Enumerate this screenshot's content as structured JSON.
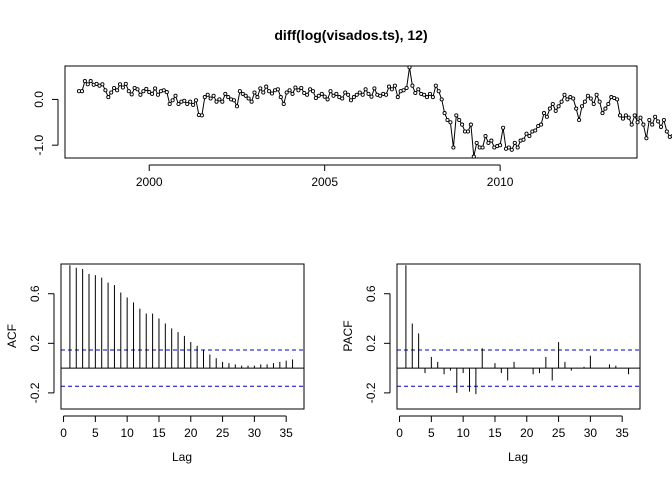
{
  "chart_data": [
    {
      "type": "line",
      "title": "diff(log(visados.ts), 12)",
      "xlabel": "",
      "ylabel": "",
      "x_ticks": [
        2000,
        2005,
        2010
      ],
      "y_ticks": [
        -1.0,
        0.0
      ],
      "y_tick_labels": [
        "-1.0",
        "0.0"
      ],
      "xlim": [
        1997.6,
        2013.9
      ],
      "ylim": [
        -1.28,
        0.73
      ],
      "series": [
        {
          "x_start": 1998.0,
          "frequency": 12,
          "values": [
            0.18,
            0.18,
            0.4,
            0.33,
            0.4,
            0.32,
            0.34,
            0.3,
            0.33,
            0.2,
            0.05,
            0.15,
            0.25,
            0.2,
            0.33,
            0.26,
            0.34,
            0.18,
            0.11,
            0.25,
            0.22,
            0.1,
            0.18,
            0.23,
            0.16,
            0.12,
            0.24,
            0.1,
            0.18,
            0.2,
            0.16,
            -0.1,
            -0.02,
            0.08,
            -0.1,
            -0.05,
            -0.03,
            -0.1,
            -0.05,
            -0.12,
            -0.02,
            -0.34,
            -0.35,
            0.05,
            0.1,
            0.02,
            0.08,
            -0.05,
            0.0,
            -0.05,
            0.12,
            0.05,
            0.0,
            -0.02,
            -0.15,
            0.18,
            0.12,
            0.08,
            0.02,
            -0.05,
            0.15,
            0.05,
            0.24,
            0.15,
            0.28,
            0.18,
            0.13,
            0.2,
            0.22,
            0.05,
            -0.1,
            0.15,
            0.2,
            0.12,
            0.26,
            0.2,
            0.25,
            0.14,
            0.1,
            0.22,
            0.18,
            0.03,
            0.08,
            0.12,
            0.06,
            0.0,
            0.18,
            0.08,
            0.12,
            0.05,
            0.02,
            0.15,
            0.1,
            -0.02,
            0.05,
            0.1,
            0.15,
            0.1,
            0.22,
            0.12,
            0.06,
            0.24,
            0.1,
            0.08,
            0.12,
            0.1,
            0.28,
            0.22,
            0.3,
            0.05,
            0.18,
            0.2,
            0.25,
            0.7,
            0.3,
            0.14,
            0.22,
            0.12,
            0.1,
            0.05,
            0.12,
            0.05,
            0.3,
            0.18,
            0.0,
            -0.3,
            -0.45,
            -0.5,
            -1.05,
            -0.35,
            -0.45,
            -0.55,
            -0.7,
            -0.7,
            -0.55,
            -1.25,
            -0.95,
            -1.05,
            -1.05,
            -0.8,
            -0.95,
            -0.9,
            -1.05,
            -1.02,
            -1.0,
            -0.62,
            -1.08,
            -1.05,
            -1.1,
            -0.95,
            -1.05,
            -0.9,
            -0.88,
            -0.75,
            -0.8,
            -0.7,
            -0.68,
            -0.58,
            -0.55,
            -0.3,
            -0.38,
            -0.2,
            -0.1,
            -0.25,
            -0.15,
            -0.05,
            0.1,
            0.0,
            0.05,
            0.02,
            -0.2,
            -0.45,
            -0.15,
            -0.05,
            0.08,
            0.02,
            -0.1,
            0.1,
            -0.05,
            -0.3,
            -0.2,
            -0.1,
            0.05,
            0.03,
            0.0,
            -0.35,
            -0.42,
            -0.35,
            -0.4,
            -0.55,
            -0.35,
            -0.5,
            -0.4,
            -0.55,
            -0.85,
            -0.45,
            -0.55,
            -0.38,
            -0.48,
            -0.6,
            -0.45,
            -0.7,
            -0.82,
            -0.8,
            -0.6,
            -0.45,
            -0.4,
            -0.7,
            -0.55,
            -0.45,
            -0.1,
            -0.52,
            -0.4,
            -0.45,
            -0.15,
            -0.08,
            -0.55
          ]
        }
      ],
      "marker": "open-circle",
      "line_color": "#000000",
      "grid": false
    },
    {
      "type": "bar",
      "subtype": "acf",
      "title": "",
      "xlabel": "Lag",
      "ylabel": "ACF",
      "x_ticks": [
        0,
        5,
        10,
        15,
        20,
        25,
        30,
        35
      ],
      "y_ticks": [
        -0.2,
        0.2,
        0.6
      ],
      "y_tick_labels": [
        "-0.2",
        "0.2",
        "0.6"
      ],
      "xlim": [
        -0.4,
        37.8
      ],
      "ylim": [
        -0.33,
        0.84
      ],
      "lags": [
        1,
        2,
        3,
        4,
        5,
        6,
        7,
        8,
        9,
        10,
        11,
        12,
        13,
        14,
        15,
        16,
        17,
        18,
        19,
        20,
        21,
        22,
        23,
        24,
        25,
        26,
        27,
        28,
        29,
        30,
        31,
        32,
        33,
        34,
        35,
        36
      ],
      "values": [
        0.83,
        0.81,
        0.8,
        0.76,
        0.75,
        0.73,
        0.69,
        0.67,
        0.61,
        0.57,
        0.53,
        0.48,
        0.44,
        0.44,
        0.4,
        0.36,
        0.32,
        0.29,
        0.26,
        0.21,
        0.18,
        0.15,
        0.11,
        0.08,
        0.05,
        0.04,
        0.03,
        0.02,
        0.02,
        0.02,
        0.03,
        0.03,
        0.04,
        0.05,
        0.06,
        0.07
      ],
      "conf_level": 0.146,
      "conf_color": "#0000cc",
      "grid": false
    },
    {
      "type": "bar",
      "subtype": "pacf",
      "title": "",
      "xlabel": "Lag",
      "ylabel": "PACF",
      "x_ticks": [
        0,
        5,
        10,
        15,
        20,
        25,
        30,
        35
      ],
      "y_ticks": [
        -0.2,
        0.2,
        0.6
      ],
      "y_tick_labels": [
        "-0.2",
        "0.2",
        "0.6"
      ],
      "xlim": [
        -0.4,
        37.8
      ],
      "ylim": [
        -0.33,
        0.84
      ],
      "lags": [
        1,
        2,
        3,
        4,
        5,
        6,
        7,
        8,
        9,
        10,
        11,
        12,
        13,
        14,
        15,
        16,
        17,
        18,
        19,
        20,
        21,
        22,
        23,
        24,
        25,
        26,
        27,
        28,
        29,
        30,
        31,
        32,
        33,
        34,
        35,
        36
      ],
      "values": [
        0.83,
        0.36,
        0.28,
        -0.04,
        0.09,
        0.05,
        -0.05,
        -0.02,
        -0.2,
        -0.04,
        -0.19,
        -0.21,
        0.16,
        0.0,
        0.04,
        -0.04,
        -0.1,
        0.05,
        0.0,
        0.0,
        -0.05,
        -0.04,
        0.09,
        -0.1,
        0.21,
        0.05,
        -0.02,
        0.0,
        0.01,
        0.1,
        0.0,
        0.0,
        0.03,
        0.02,
        0.0,
        -0.05
      ],
      "conf_level": 0.146,
      "conf_color": "#0000cc",
      "grid": false
    }
  ]
}
